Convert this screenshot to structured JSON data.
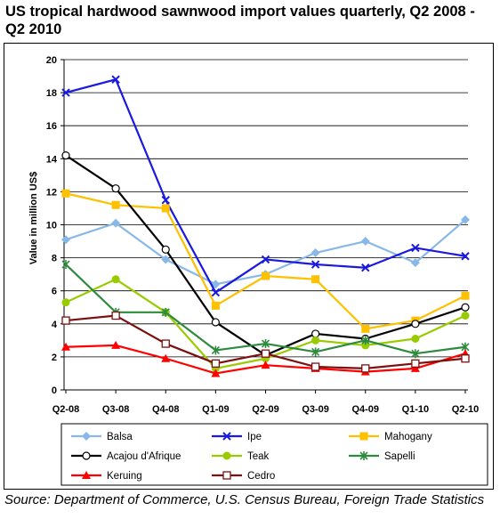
{
  "title": "US tropical hardwood sawnwood import values quarterly, Q2 2008 - Q2 2010",
  "source": "Source: Department of Commerce, U.S. Census Bureau, Foreign Trade Statistics",
  "chart_data": {
    "type": "line",
    "title": "US tropical hardwood sawnwood import values quarterly, Q2 2008 - Q2 2010",
    "xlabel": "",
    "ylabel": "Value in million US$",
    "ylim": [
      0,
      20
    ],
    "yticks": [
      0,
      2,
      4,
      6,
      8,
      10,
      12,
      14,
      16,
      18,
      20
    ],
    "grid": "horizontal",
    "legend_position": "bottom",
    "categories": [
      "Q2-08",
      "Q3-08",
      "Q4-08",
      "Q1-09",
      "Q2-09",
      "Q3-09",
      "Q4-09",
      "Q1-10",
      "Q2-10"
    ],
    "series": [
      {
        "name": "Balsa",
        "color": "#87b8e8",
        "marker": "diamond",
        "values": [
          9.1,
          10.1,
          7.9,
          6.4,
          7.0,
          8.3,
          9.0,
          7.7,
          10.3
        ]
      },
      {
        "name": "Ipe",
        "color": "#1a1adf",
        "marker": "x",
        "values": [
          18.0,
          18.8,
          11.5,
          5.9,
          7.9,
          7.6,
          7.4,
          8.6,
          8.1
        ]
      },
      {
        "name": "Mahogany",
        "color": "#ffc000",
        "marker": "square",
        "values": [
          11.9,
          11.2,
          11.0,
          5.1,
          6.9,
          6.7,
          3.7,
          4.2,
          5.7
        ]
      },
      {
        "name": "Acajou d'Afrique",
        "color": "#000000",
        "marker": "circle-open",
        "values": [
          14.2,
          12.2,
          8.5,
          4.1,
          2.1,
          3.4,
          3.1,
          4.0,
          5.0
        ]
      },
      {
        "name": "Teak",
        "color": "#99cc00",
        "marker": "circle",
        "values": [
          5.3,
          6.7,
          4.7,
          1.3,
          1.9,
          3.0,
          2.7,
          3.1,
          4.5
        ]
      },
      {
        "name": "Sapelli",
        "color": "#2e8b3e",
        "marker": "star",
        "values": [
          7.6,
          4.7,
          4.7,
          2.4,
          2.8,
          2.3,
          3.0,
          2.2,
          2.6
        ]
      },
      {
        "name": "Keruing",
        "color": "#ff0000",
        "marker": "triangle",
        "values": [
          2.6,
          2.7,
          1.9,
          1.0,
          1.5,
          1.3,
          1.1,
          1.3,
          2.2
        ]
      },
      {
        "name": "Cedro",
        "color": "#7b1010",
        "marker": "square-open",
        "values": [
          4.2,
          4.5,
          2.8,
          1.6,
          2.2,
          1.4,
          1.3,
          1.6,
          1.9
        ]
      }
    ]
  }
}
